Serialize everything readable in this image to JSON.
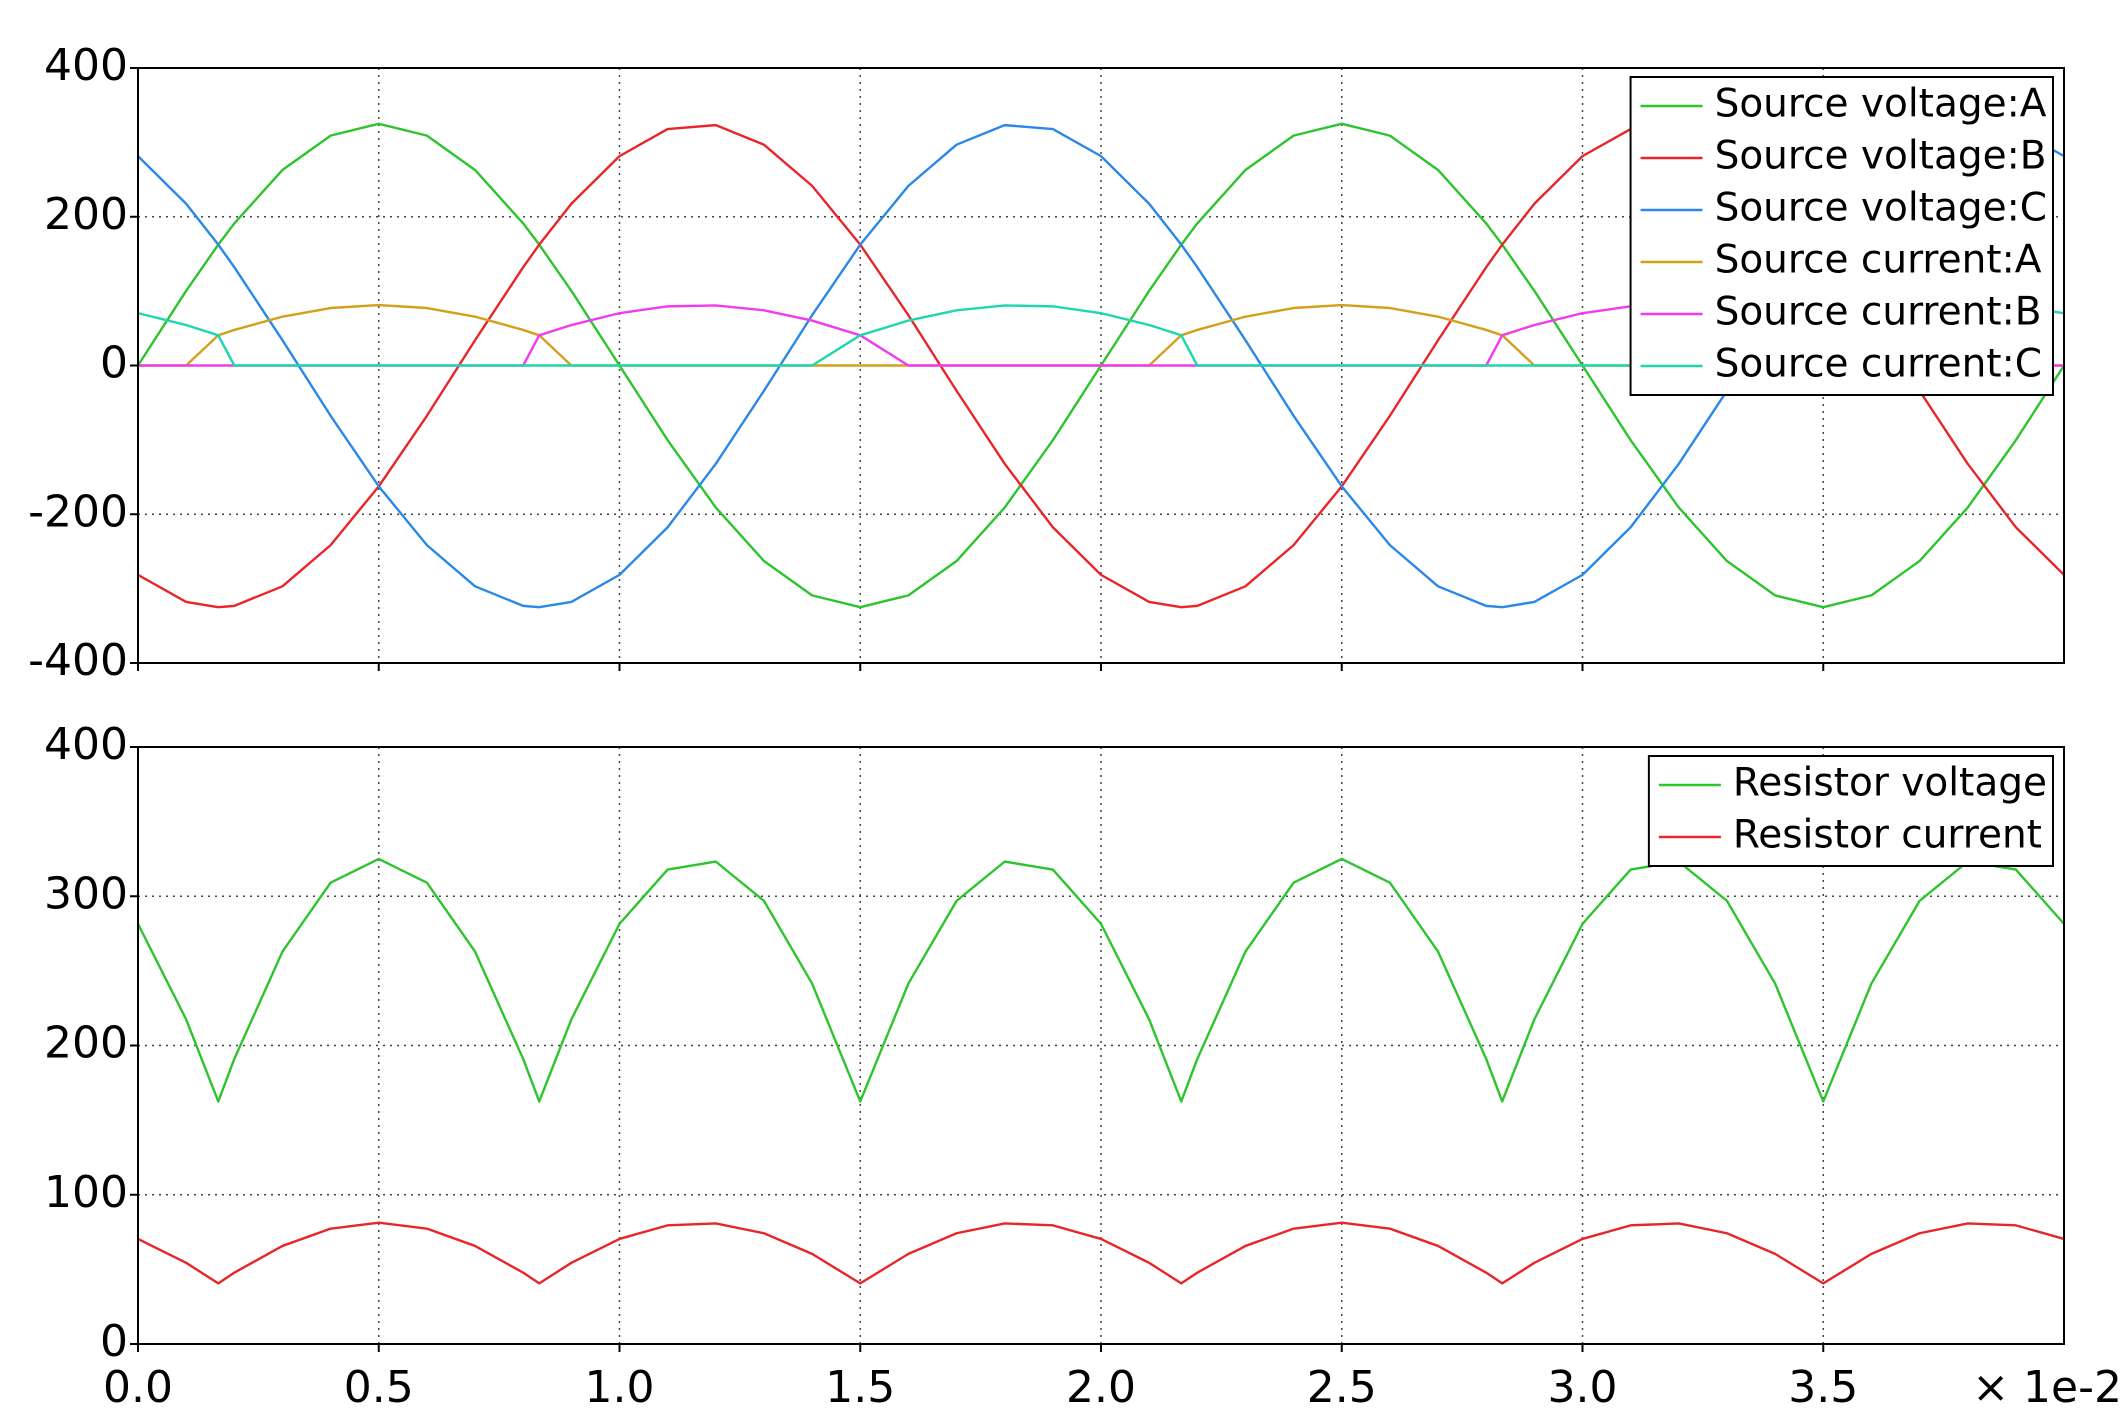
{
  "chart_data": [
    {
      "type": "line",
      "grid": true,
      "legend": "upper right",
      "xtick_labels": false,
      "xlim": [
        0,
        4
      ],
      "xticks": [
        0,
        0.5,
        1,
        1.5,
        2,
        2.5,
        3,
        3.5
      ],
      "ylim": [
        -400,
        400
      ],
      "yticks": [
        -400,
        -200,
        0,
        200,
        400
      ],
      "x": [
        0,
        0.1,
        0.1667,
        0.2,
        0.3,
        0.4,
        0.5,
        0.6,
        0.7,
        0.8,
        0.8333,
        0.9,
        1.0,
        1.1,
        1.2,
        1.3,
        1.4,
        1.5,
        1.6,
        1.7,
        1.8,
        1.9,
        2.0,
        2.1,
        2.1667,
        2.2,
        2.3,
        2.4,
        2.5,
        2.6,
        2.7,
        2.8,
        2.8333,
        2.9,
        3.0,
        3.1,
        3.2,
        3.3,
        3.4,
        3.5,
        3.6,
        3.7,
        3.8,
        3.9,
        4.0
      ],
      "series": [
        {
          "name": "Source voltage:A",
          "color": "#2ec42e",
          "values": [
            0,
            100.4,
            162.5,
            191.0,
            262.9,
            309.1,
            325,
            309.1,
            262.9,
            191.0,
            162.5,
            100.4,
            0,
            -100.4,
            -191.0,
            -262.9,
            -309.1,
            -325,
            -309.1,
            -262.9,
            -191.0,
            -100.4,
            0,
            100.4,
            162.5,
            191.0,
            262.9,
            309.1,
            325,
            309.1,
            262.9,
            191.0,
            162.5,
            100.4,
            0,
            -100.4,
            -191.0,
            -262.9,
            -309.1,
            -325,
            -309.1,
            -262.9,
            -191.0,
            -100.4,
            0
          ]
        },
        {
          "name": "Source voltage:B",
          "color": "#e8262a",
          "values": [
            -281.5,
            -317.9,
            -325,
            -323.2,
            -296.9,
            -241.5,
            -162.5,
            -67.6,
            34.0,
            132.2,
            162.5,
            217.5,
            281.5,
            317.9,
            323.2,
            296.9,
            241.5,
            162.5,
            67.6,
            -34.0,
            -132.2,
            -217.5,
            -281.5,
            -317.9,
            -325,
            -323.2,
            -296.9,
            -241.5,
            -162.5,
            -67.6,
            34.0,
            132.2,
            162.5,
            217.5,
            281.5,
            317.9,
            323.2,
            296.9,
            241.5,
            162.5,
            67.6,
            -34.0,
            -132.2,
            -217.5,
            -281.5
          ]
        },
        {
          "name": "Source voltage:C",
          "color": "#2a88e6",
          "values": [
            281.5,
            217.5,
            162.5,
            132.2,
            34.0,
            -67.6,
            -162.5,
            -241.5,
            -296.9,
            -323.2,
            -325,
            -317.9,
            -281.5,
            -217.5,
            -132.2,
            -34.0,
            67.6,
            162.5,
            241.5,
            296.9,
            323.2,
            317.9,
            281.5,
            217.5,
            162.5,
            132.2,
            34.0,
            -67.6,
            -162.5,
            -241.5,
            -296.9,
            -323.2,
            -325,
            -317.9,
            -281.5,
            -217.5,
            -132.2,
            -34.0,
            67.6,
            162.5,
            241.5,
            296.9,
            323.2,
            317.9,
            281.5
          ]
        },
        {
          "name": "Source current:A",
          "color": "#d4a01c",
          "values": [
            0,
            0,
            40.6,
            47.8,
            65.7,
            77.3,
            81.3,
            77.3,
            65.7,
            47.8,
            40.6,
            0,
            0,
            0,
            0,
            0,
            0,
            0,
            0,
            0,
            0,
            0,
            0,
            0,
            40.6,
            47.8,
            65.7,
            77.3,
            81.3,
            77.3,
            65.7,
            47.8,
            40.6,
            0,
            0,
            0,
            0,
            0,
            0,
            0,
            0,
            0,
            0,
            0,
            0
          ]
        },
        {
          "name": "Source current:B",
          "color": "#f03cf0",
          "values": [
            0,
            0,
            0,
            0,
            0,
            0,
            0,
            0,
            0,
            0,
            40.6,
            54.4,
            70.4,
            79.5,
            80.8,
            74.2,
            60.4,
            40.6,
            0,
            0,
            0,
            0,
            0,
            0,
            0,
            0,
            0,
            0,
            0,
            0,
            0,
            0,
            40.6,
            54.4,
            70.4,
            79.5,
            80.8,
            74.2,
            60.4,
            40.6,
            0,
            0,
            0,
            0,
            0
          ]
        },
        {
          "name": "Source current:C",
          "color": "#20d6ae",
          "values": [
            70.4,
            54.4,
            40.6,
            0,
            0,
            0,
            0,
            0,
            0,
            0,
            0,
            0,
            0,
            0,
            0,
            0,
            0,
            40.6,
            60.4,
            74.2,
            80.8,
            79.5,
            70.4,
            54.4,
            40.6,
            0,
            0,
            0,
            0,
            0,
            0,
            0,
            0,
            0,
            0,
            0,
            0,
            0,
            0,
            40.6,
            60.4,
            74.2,
            80.8,
            79.5,
            70.4
          ]
        }
      ]
    },
    {
      "type": "line",
      "grid": true,
      "legend": "upper right",
      "xtick_labels": true,
      "x_axis_multiplier": "× 1e-2",
      "xlim": [
        0,
        4
      ],
      "xticks": [
        {
          "value": 0,
          "label": "0.0"
        },
        0.5,
        {
          "value": 1,
          "label": "1.0"
        },
        1.5,
        {
          "value": 2,
          "label": "2.0"
        },
        2.5,
        {
          "value": 3,
          "label": "3.0"
        },
        3.5
      ],
      "ylim": [
        0,
        400
      ],
      "yticks": [
        0,
        100,
        200,
        300,
        400
      ],
      "x": [
        0,
        0.1,
        0.1667,
        0.2,
        0.3,
        0.4,
        0.5,
        0.6,
        0.7,
        0.8,
        0.8333,
        0.9,
        1.0,
        1.1,
        1.2,
        1.3,
        1.4,
        1.5,
        1.6,
        1.7,
        1.8,
        1.9,
        2.0,
        2.1,
        2.1667,
        2.2,
        2.3,
        2.4,
        2.5,
        2.6,
        2.7,
        2.8,
        2.8333,
        2.9,
        3.0,
        3.1,
        3.2,
        3.3,
        3.4,
        3.5,
        3.6,
        3.7,
        3.8,
        3.9,
        4.0
      ],
      "series": [
        {
          "name": "Resistor voltage",
          "color": "#2ec42e",
          "values": [
            281.5,
            217.5,
            162.5,
            191.0,
            262.9,
            309.1,
            325,
            309.1,
            262.9,
            191.0,
            162.5,
            217.5,
            281.5,
            317.9,
            323.2,
            296.9,
            241.5,
            162.5,
            241.5,
            296.9,
            323.2,
            317.9,
            281.5,
            217.5,
            162.5,
            191.0,
            262.9,
            309.1,
            325,
            309.1,
            262.9,
            191.0,
            162.5,
            217.5,
            281.5,
            317.9,
            323.2,
            296.9,
            241.5,
            162.5,
            241.5,
            296.9,
            323.2,
            317.9,
            281.5
          ]
        },
        {
          "name": "Resistor current",
          "color": "#e8262a",
          "values": [
            70.4,
            54.4,
            40.6,
            47.8,
            65.7,
            77.3,
            81.3,
            77.3,
            65.7,
            47.8,
            40.6,
            54.4,
            70.4,
            79.5,
            80.8,
            74.2,
            60.4,
            40.6,
            60.4,
            74.2,
            80.8,
            79.5,
            70.4,
            54.4,
            40.6,
            47.8,
            65.7,
            77.3,
            81.3,
            77.3,
            65.7,
            47.8,
            40.6,
            54.4,
            70.4,
            79.5,
            80.8,
            74.2,
            60.4,
            40.6,
            60.4,
            74.2,
            80.8,
            79.5,
            70.4
          ]
        }
      ]
    }
  ]
}
